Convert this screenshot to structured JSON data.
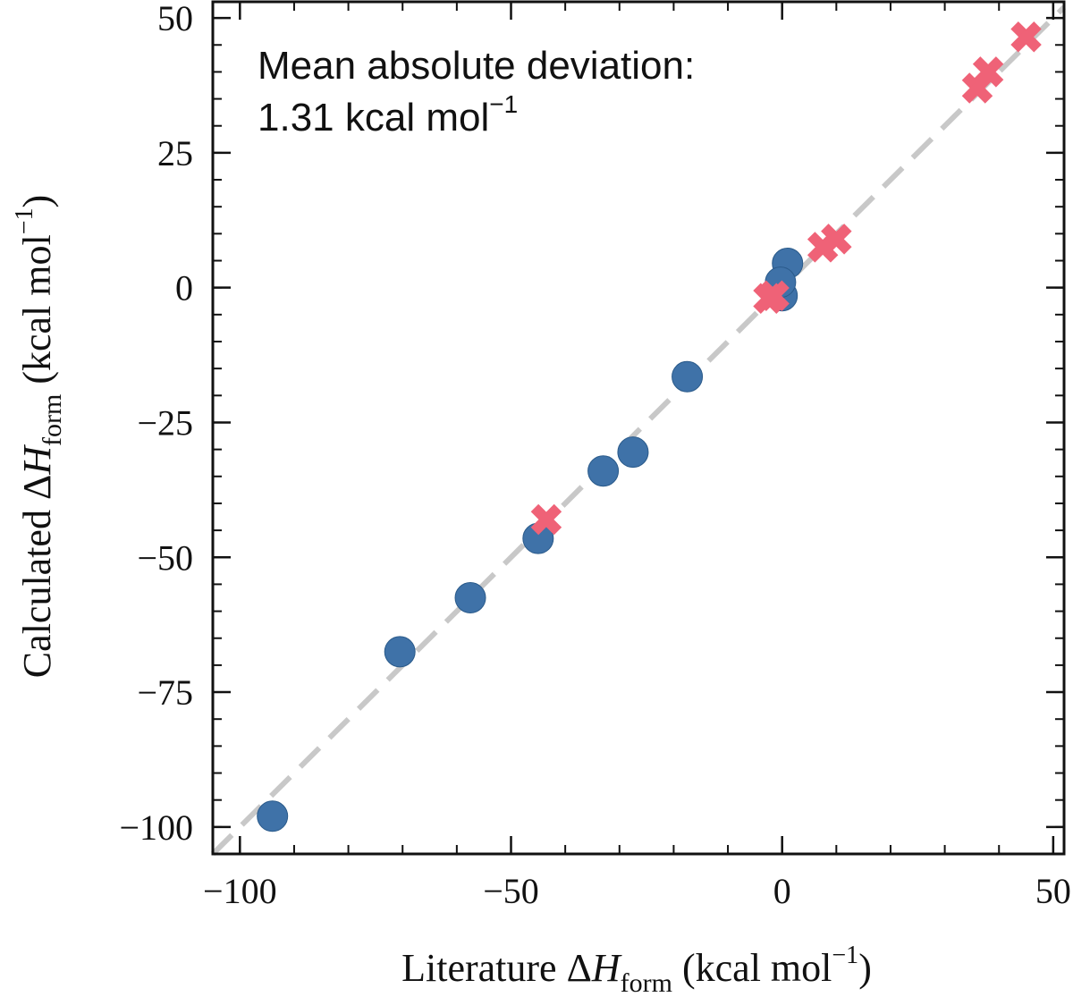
{
  "chart_data": {
    "type": "scatter",
    "title": "",
    "xlabel": {
      "prefix": "Literature ",
      "delta": "Δ",
      "var": "H",
      "sub": "form",
      "unit_open": " (kcal mol",
      "sup": "−1",
      "unit_close": ")"
    },
    "ylabel": {
      "prefix": "Calculated ",
      "delta": "Δ",
      "var": "H",
      "sub": "form",
      "unit_open": " (kcal mol",
      "sup": "−1",
      "unit_close": ")"
    },
    "xlim": [
      -105,
      52
    ],
    "ylim": [
      -105,
      53
    ],
    "xticks": [
      -100,
      -50,
      0,
      50
    ],
    "xtick_labels": [
      "−100",
      "−50",
      "0",
      "50"
    ],
    "yticks": [
      -100,
      -75,
      -50,
      -25,
      0,
      25,
      50
    ],
    "ytick_labels": [
      "−100",
      "−75",
      "−50",
      "−25",
      "0",
      "25",
      "50"
    ],
    "x_minor_step": 10,
    "y_minor_step": 5,
    "annotation": {
      "line1": "Mean absolute deviation:",
      "line2_value": "1.31 kcal mol",
      "line2_sup": "−1"
    },
    "reference_line": {
      "style": "dashed",
      "color": "#c8c8c8",
      "x": [
        -105,
        52
      ],
      "y": [
        -105,
        52
      ]
    },
    "series": [
      {
        "name": "circles",
        "marker": "circle",
        "color": "#3f72a8",
        "x": [
          -94,
          -70.5,
          -57.5,
          -45,
          -33,
          -27.5,
          -17.5,
          1,
          0,
          -0.3
        ],
        "y": [
          -98,
          -67.5,
          -57.5,
          -46.5,
          -34,
          -30.5,
          -16.5,
          4.5,
          -1.5,
          1
        ]
      },
      {
        "name": "crosses",
        "marker": "x",
        "color": "#ef6277",
        "x": [
          -43.5,
          -2.5,
          -1.5,
          7.5,
          10,
          36,
          38,
          45
        ],
        "y": [
          -43,
          -2,
          -1.5,
          7.5,
          9,
          37,
          40,
          46.5
        ]
      }
    ]
  }
}
